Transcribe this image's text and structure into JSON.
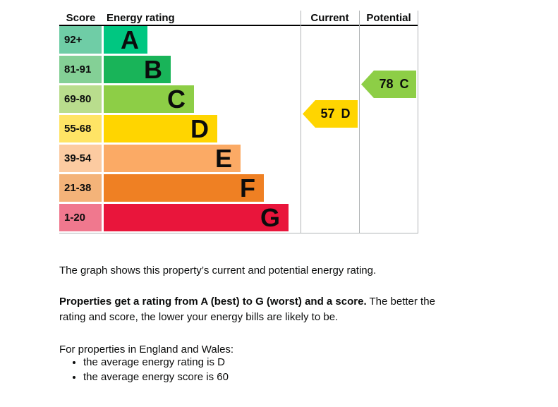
{
  "chart_data": {
    "type": "bar",
    "title": "Energy rating chart",
    "columns": [
      "Score",
      "Energy rating",
      "Current",
      "Potential"
    ],
    "bands": [
      {
        "range": "92+",
        "letter": "A",
        "color": "#00c781",
        "score_color": "#6fcda6"
      },
      {
        "range": "81-91",
        "letter": "B",
        "color": "#19b459",
        "score_color": "#84d096"
      },
      {
        "range": "69-80",
        "letter": "C",
        "color": "#8dce46",
        "score_color": "#b9dd8d"
      },
      {
        "range": "55-68",
        "letter": "D",
        "color": "#ffd500",
        "score_color": "#ffe465"
      },
      {
        "range": "39-54",
        "letter": "E",
        "color": "#fbaa65",
        "score_color": "#fccba1"
      },
      {
        "range": "21-38",
        "letter": "F",
        "color": "#ef8023",
        "score_color": "#f4b379"
      },
      {
        "range": "1-20",
        "letter": "G",
        "color": "#e9153b",
        "score_color": "#f0788e"
      }
    ],
    "current": {
      "score": "57",
      "band": "D",
      "color": "#ffd500",
      "band_index": 3
    },
    "potential": {
      "score": "78",
      "band": "C",
      "color": "#8dce46",
      "band_index": 2
    },
    "layout": {
      "grid": "off",
      "legend": "none",
      "bar_direction": "horizontal"
    }
  },
  "header": {
    "score": "Score",
    "rating": "Energy rating",
    "current": "Current",
    "potential": "Potential"
  },
  "text": {
    "intro": "The graph shows this property’s current and potential energy rating.",
    "rating_bold": "Properties get a rating from A (best) to G (worst) and a score.",
    "rating_rest": " The better the rating and score, the lower your energy bills are likely to be.",
    "region_heading": "For properties in England and Wales:",
    "bullets": [
      "the average energy rating is D",
      "the average energy score is 60"
    ]
  },
  "colors": {
    "text": "#0b0c0c",
    "table_border_grey": "#b1b4b6",
    "header_underline": "#000000"
  }
}
